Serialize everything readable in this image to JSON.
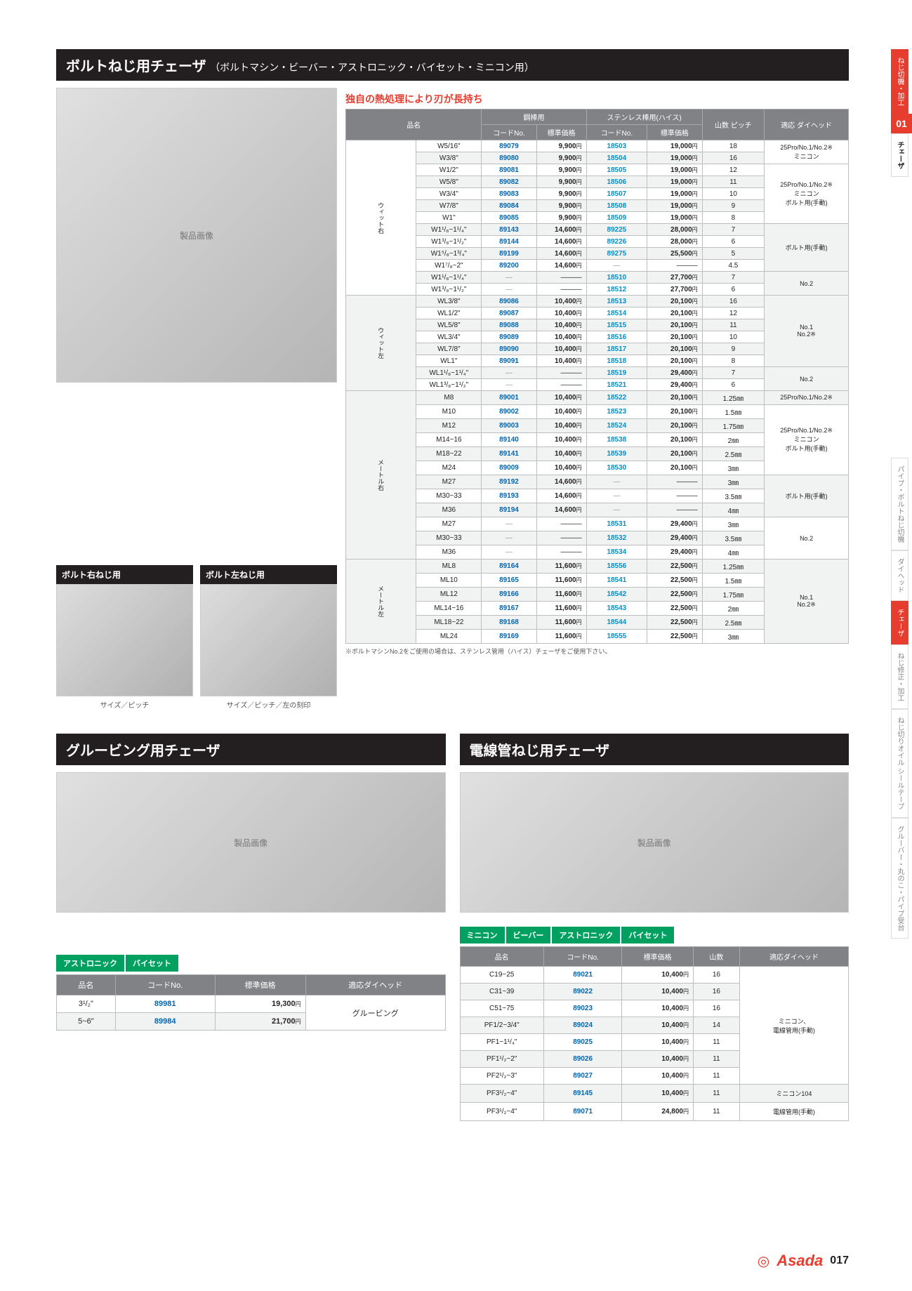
{
  "side": {
    "cat": "ねじ切機・加工",
    "num": "01",
    "sub": "チェーザ",
    "tabs": [
      "パイプ・ボルトねじ切機",
      "ダイヘッド",
      "チェーザ",
      "ねじ修正・加工",
      "ねじ切りオイル シールテープ",
      "グルーバー・丸のこ・パイプ受台"
    ]
  },
  "sec1": {
    "title": "ボルトねじ用チェーザ",
    "sub": "（ボルトマシン・ビーバー・アストロニック・バイセット・ミニコン用）",
    "note": "独自の熱処理により刃が長持ち",
    "thumbs": [
      {
        "label": "ボルト右ねじ用",
        "cap": "サイズ／ピッチ"
      },
      {
        "label": "ボルト左ねじ用",
        "cap": "サイズ／ピッチ／左の刻印"
      }
    ],
    "headers": {
      "name": "品名",
      "steel": "鋼棒用",
      "sus": "ステンレス棒用(ハイス)",
      "code": "コードNo.",
      "price": "標準価格",
      "pitch": "山数\nピッチ",
      "head": "適応\nダイヘッド"
    },
    "groups": [
      {
        "label": "ウィット右",
        "rows": [
          {
            "n": "W5/16\"",
            "c1": "89079",
            "p1": "9,900",
            "c2": "18503",
            "p2": "19,000",
            "pt": "18",
            "h": "25Pro/No.1/No.2※\nミニコン"
          },
          {
            "n": "W3/8\"",
            "c1": "89080",
            "p1": "9,900",
            "c2": "18504",
            "p2": "19,000",
            "pt": "16",
            "h": ""
          },
          {
            "n": "W1/2\"",
            "c1": "89081",
            "p1": "9,900",
            "c2": "18505",
            "p2": "19,000",
            "pt": "12",
            "h": "25Pro/No.1/No.2※\nミニコン\nボルト用(手動)"
          },
          {
            "n": "W5/8\"",
            "c1": "89082",
            "p1": "9,900",
            "c2": "18506",
            "p2": "19,000",
            "pt": "11",
            "h": ""
          },
          {
            "n": "W3/4\"",
            "c1": "89083",
            "p1": "9,900",
            "c2": "18507",
            "p2": "19,000",
            "pt": "10",
            "h": ""
          },
          {
            "n": "W7/8\"",
            "c1": "89084",
            "p1": "9,900",
            "c2": "18508",
            "p2": "19,000",
            "pt": "9",
            "h": ""
          },
          {
            "n": "W1\"",
            "c1": "89085",
            "p1": "9,900",
            "c2": "18509",
            "p2": "19,000",
            "pt": "8",
            "h": ""
          },
          {
            "n": "W1¹/₈~1¹/₄\"",
            "c1": "89143",
            "p1": "14,600",
            "c2": "89225",
            "p2": "28,000",
            "pt": "7",
            "h": "ボルト用(手動)"
          },
          {
            "n": "W1³/₈~1¹/₂\"",
            "c1": "89144",
            "p1": "14,600",
            "c2": "89226",
            "p2": "28,000",
            "pt": "6",
            "h": ""
          },
          {
            "n": "W1⁵/₈~1³/₄\"",
            "c1": "89199",
            "p1": "14,600",
            "c2": "89275",
            "p2": "25,500",
            "pt": "5",
            "h": ""
          },
          {
            "n": "W1⁷/₈~2\"",
            "c1": "89200",
            "p1": "14,600",
            "c2": "—",
            "p2": "—",
            "pt": "4.5",
            "h": ""
          },
          {
            "n": "W1¹/₈~1¹/₄\"",
            "c1": "—",
            "p1": "—",
            "c2": "18510",
            "p2": "27,700",
            "pt": "7",
            "h": "No.2"
          },
          {
            "n": "W1³/₈~1¹/₂\"",
            "c1": "—",
            "p1": "—",
            "c2": "18512",
            "p2": "27,700",
            "pt": "6",
            "h": ""
          }
        ]
      },
      {
        "label": "ウィット左",
        "rows": [
          {
            "n": "WL3/8\"",
            "c1": "89086",
            "p1": "10,400",
            "c2": "18513",
            "p2": "20,100",
            "pt": "16",
            "h": "No.1\nNo.2※"
          },
          {
            "n": "WL1/2\"",
            "c1": "89087",
            "p1": "10,400",
            "c2": "18514",
            "p2": "20,100",
            "pt": "12",
            "h": ""
          },
          {
            "n": "WL5/8\"",
            "c1": "89088",
            "p1": "10,400",
            "c2": "18515",
            "p2": "20,100",
            "pt": "11",
            "h": ""
          },
          {
            "n": "WL3/4\"",
            "c1": "89089",
            "p1": "10,400",
            "c2": "18516",
            "p2": "20,100",
            "pt": "10",
            "h": ""
          },
          {
            "n": "WL7/8\"",
            "c1": "89090",
            "p1": "10,400",
            "c2": "18517",
            "p2": "20,100",
            "pt": "9",
            "h": ""
          },
          {
            "n": "WL1\"",
            "c1": "89091",
            "p1": "10,400",
            "c2": "18518",
            "p2": "20,100",
            "pt": "8",
            "h": ""
          },
          {
            "n": "WL1¹/₈~1¹/₄\"",
            "c1": "—",
            "p1": "—",
            "c2": "18519",
            "p2": "29,400",
            "pt": "7",
            "h": "No.2"
          },
          {
            "n": "WL1³/₈~1¹/₂\"",
            "c1": "—",
            "p1": "—",
            "c2": "18521",
            "p2": "29,400",
            "pt": "6",
            "h": ""
          }
        ]
      },
      {
        "label": "メートル右",
        "rows": [
          {
            "n": "M8",
            "c1": "89001",
            "p1": "10,400",
            "c2": "18522",
            "p2": "20,100",
            "pt": "1.25㎜",
            "h": "25Pro/No.1/No.2※"
          },
          {
            "n": "M10",
            "c1": "89002",
            "p1": "10,400",
            "c2": "18523",
            "p2": "20,100",
            "pt": "1.5㎜",
            "h": "25Pro/No.1/No.2※\nミニコン\nボルト用(手動)"
          },
          {
            "n": "M12",
            "c1": "89003",
            "p1": "10,400",
            "c2": "18524",
            "p2": "20,100",
            "pt": "1.75㎜",
            "h": ""
          },
          {
            "n": "M14~16",
            "c1": "89140",
            "p1": "10,400",
            "c2": "18538",
            "p2": "20,100",
            "pt": "2㎜",
            "h": ""
          },
          {
            "n": "M18~22",
            "c1": "89141",
            "p1": "10,400",
            "c2": "18539",
            "p2": "20,100",
            "pt": "2.5㎜",
            "h": ""
          },
          {
            "n": "M24",
            "c1": "89009",
            "p1": "10,400",
            "c2": "18530",
            "p2": "20,100",
            "pt": "3㎜",
            "h": ""
          },
          {
            "n": "M27",
            "c1": "89192",
            "p1": "14,600",
            "c2": "—",
            "p2": "—",
            "pt": "3㎜",
            "h": "ボルト用(手動)"
          },
          {
            "n": "M30~33",
            "c1": "89193",
            "p1": "14,600",
            "c2": "—",
            "p2": "—",
            "pt": "3.5㎜",
            "h": ""
          },
          {
            "n": "M36",
            "c1": "89194",
            "p1": "14,600",
            "c2": "—",
            "p2": "—",
            "pt": "4㎜",
            "h": ""
          },
          {
            "n": "M27",
            "c1": "—",
            "p1": "—",
            "c2": "18531",
            "p2": "29,400",
            "pt": "3㎜",
            "h": "No.2"
          },
          {
            "n": "M30~33",
            "c1": "—",
            "p1": "—",
            "c2": "18532",
            "p2": "29,400",
            "pt": "3.5㎜",
            "h": ""
          },
          {
            "n": "M36",
            "c1": "—",
            "p1": "—",
            "c2": "18534",
            "p2": "29,400",
            "pt": "4㎜",
            "h": ""
          }
        ]
      },
      {
        "label": "メートル左",
        "rows": [
          {
            "n": "ML8",
            "c1": "89164",
            "p1": "11,600",
            "c2": "18556",
            "p2": "22,500",
            "pt": "1.25㎜",
            "h": "No.1\nNo.2※"
          },
          {
            "n": "ML10",
            "c1": "89165",
            "p1": "11,600",
            "c2": "18541",
            "p2": "22,500",
            "pt": "1.5㎜",
            "h": ""
          },
          {
            "n": "ML12",
            "c1": "89166",
            "p1": "11,600",
            "c2": "18542",
            "p2": "22,500",
            "pt": "1.75㎜",
            "h": ""
          },
          {
            "n": "ML14~16",
            "c1": "89167",
            "p1": "11,600",
            "c2": "18543",
            "p2": "22,500",
            "pt": "2㎜",
            "h": ""
          },
          {
            "n": "ML18~22",
            "c1": "89168",
            "p1": "11,600",
            "c2": "18544",
            "p2": "22,500",
            "pt": "2.5㎜",
            "h": ""
          },
          {
            "n": "ML24",
            "c1": "89169",
            "p1": "11,600",
            "c2": "18555",
            "p2": "22,500",
            "pt": "3㎜",
            "h": ""
          }
        ]
      }
    ],
    "footnote": "※ボルトマシンNo.2をご使用の場合は、ステンレス管用（ハイス）チェーザをご使用下さい。"
  },
  "sec2": {
    "title": "グルービング用チェーザ",
    "badges": [
      "アストロニック",
      "バイセット"
    ],
    "headers": {
      "name": "品名",
      "code": "コードNo.",
      "price": "標準価格",
      "head": "適応ダイヘッド"
    },
    "rows": [
      {
        "n": "3¹/₂\"",
        "c": "89981",
        "p": "19,300",
        "h": "グルービング"
      },
      {
        "n": "5~6\"",
        "c": "89984",
        "p": "21,700",
        "h": ""
      }
    ]
  },
  "sec3": {
    "title": "電線管ねじ用チェーザ",
    "badges": [
      "ミニコン",
      "ビーバー",
      "アストロニック",
      "バイセット"
    ],
    "headers": {
      "name": "品名",
      "code": "コードNo.",
      "price": "標準価格",
      "pitch": "山数",
      "head": "適応ダイヘッド"
    },
    "rows": [
      {
        "n": "C19~25",
        "c": "89021",
        "p": "10,400",
        "pt": "16",
        "h": "ミニコン、\n電線管用(手動)"
      },
      {
        "n": "C31~39",
        "c": "89022",
        "p": "10,400",
        "pt": "16",
        "h": ""
      },
      {
        "n": "C51~75",
        "c": "89023",
        "p": "10,400",
        "pt": "16",
        "h": ""
      },
      {
        "n": "PF1/2~3/4\"",
        "c": "89024",
        "p": "10,400",
        "pt": "14",
        "h": ""
      },
      {
        "n": "PF1~1¹/₄\"",
        "c": "89025",
        "p": "10,400",
        "pt": "11",
        "h": ""
      },
      {
        "n": "PF1¹/₂~2\"",
        "c": "89026",
        "p": "10,400",
        "pt": "11",
        "h": ""
      },
      {
        "n": "PF2¹/₂~3\"",
        "c": "89027",
        "p": "10,400",
        "pt": "11",
        "h": ""
      },
      {
        "n": "PF3¹/₂~4\"",
        "c": "89145",
        "p": "10,400",
        "pt": "11",
        "h": "ミニコン104"
      },
      {
        "n": "PF3¹/₂~4\"",
        "c": "89071",
        "p": "24,800",
        "pt": "11",
        "h": "電線管用(手動)"
      }
    ]
  },
  "footer": {
    "logo": "Asada",
    "page": "017"
  }
}
